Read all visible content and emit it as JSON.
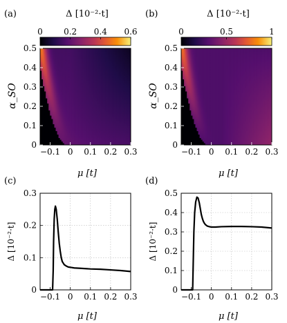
{
  "chart_data": [
    {
      "id": "a",
      "panel_label": "(a)",
      "type": "heatmap",
      "colorbar": {
        "title": "Δ [10⁻²·t]",
        "ticks": [
          "0",
          "0.2",
          "0.4",
          "0.6"
        ],
        "tick_values": [
          0,
          0.2,
          0.4,
          0.6
        ],
        "range": [
          0,
          0.6
        ],
        "colormap": "inferno-like (black-purple-red-orange-yellow)"
      },
      "xlabel": "μ [t]",
      "ylabel": "α_SO",
      "xlim": [
        -0.15,
        0.3
      ],
      "ylim": [
        0,
        0.5
      ],
      "xticks": [
        "−0.1",
        "0",
        "0.1",
        "0.2",
        "0.3"
      ],
      "xtick_values": [
        -0.1,
        0,
        0.1,
        0.2,
        0.3
      ],
      "yticks": [
        "0",
        "0.1",
        "0.2",
        "0.3",
        "0.4",
        "0.5"
      ],
      "ytick_values": [
        0,
        0.1,
        0.2,
        0.3,
        0.4,
        0.5
      ],
      "ridge_max": 0.6
    },
    {
      "id": "b",
      "panel_label": "(b)",
      "type": "heatmap",
      "colorbar": {
        "title": "Δ [10⁻²·t]",
        "ticks": [
          "0",
          "0.5",
          "1"
        ],
        "tick_values": [
          0,
          0.5,
          1
        ],
        "range": [
          0,
          1
        ],
        "colormap": "inferno-like (black-purple-red-orange-yellow)"
      },
      "xlabel": "μ [t]",
      "ylabel": "α_SO",
      "xlim": [
        -0.15,
        0.3
      ],
      "ylim": [
        0,
        0.5
      ],
      "xticks": [
        "−0.1",
        "0",
        "0.1",
        "0.2",
        "0.3"
      ],
      "xtick_values": [
        -0.1,
        0,
        0.1,
        0.2,
        0.3
      ],
      "yticks": [
        "0",
        "0.1",
        "0.2",
        "0.3",
        "0.4",
        "0.5"
      ],
      "ytick_values": [
        0,
        0.1,
        0.2,
        0.3,
        0.4,
        0.5
      ],
      "ridge_max": 0.62
    },
    {
      "id": "c",
      "panel_label": "(c)",
      "type": "line",
      "xlabel": "μ [t]",
      "ylabel": "Δ [10⁻²·t]",
      "xlim": [
        -0.15,
        0.3
      ],
      "ylim": [
        0,
        0.3
      ],
      "grid": true,
      "xticks": [
        "−0.1",
        "0",
        "0.1",
        "0.2",
        "0.3"
      ],
      "xtick_values": [
        -0.1,
        0,
        0.1,
        0.2,
        0.3
      ],
      "yticks": [
        "0",
        "0.1",
        "0.2",
        "0.3"
      ],
      "ytick_values": [
        0,
        0.1,
        0.2,
        0.3
      ],
      "series": [
        {
          "x": [
            -0.15,
            -0.12,
            -0.09,
            -0.088,
            -0.085,
            -0.083,
            -0.08,
            -0.077,
            -0.074,
            -0.07,
            -0.065,
            -0.06,
            -0.055,
            -0.05,
            -0.045,
            -0.04,
            -0.03,
            -0.02,
            -0.01,
            0.0,
            0.02,
            0.05,
            0.1,
            0.15,
            0.2,
            0.25,
            0.3
          ],
          "y": [
            0.0,
            0.0,
            0.0,
            0.0,
            0.06,
            0.15,
            0.22,
            0.25,
            0.26,
            0.25,
            0.22,
            0.18,
            0.145,
            0.12,
            0.1,
            0.088,
            0.078,
            0.074,
            0.071,
            0.07,
            0.068,
            0.067,
            0.065,
            0.064,
            0.062,
            0.06,
            0.057
          ]
        }
      ]
    },
    {
      "id": "d",
      "panel_label": "(d)",
      "type": "line",
      "xlabel": "μ [t]",
      "ylabel": "Δ [10⁻²·t]",
      "xlim": [
        -0.15,
        0.3
      ],
      "ylim": [
        0,
        0.5
      ],
      "grid": true,
      "xticks": [
        "−0.1",
        "0",
        "0.1",
        "0.2",
        "0.3"
      ],
      "xtick_values": [
        -0.1,
        0,
        0.1,
        0.2,
        0.3
      ],
      "yticks": [
        "0",
        "0.1",
        "0.2",
        "0.3",
        "0.4",
        "0.5"
      ],
      "ytick_values": [
        0,
        0.1,
        0.2,
        0.3,
        0.4,
        0.5
      ],
      "series": [
        {
          "x": [
            -0.15,
            -0.12,
            -0.095,
            -0.093,
            -0.09,
            -0.087,
            -0.083,
            -0.078,
            -0.072,
            -0.066,
            -0.06,
            -0.055,
            -0.05,
            -0.045,
            -0.04,
            -0.035,
            -0.03,
            -0.02,
            -0.01,
            0.0,
            0.02,
            0.05,
            0.1,
            0.15,
            0.2,
            0.25,
            0.3
          ],
          "y": [
            0.0,
            0.0,
            0.0,
            0.0,
            0.15,
            0.3,
            0.4,
            0.455,
            0.48,
            0.475,
            0.45,
            0.42,
            0.39,
            0.37,
            0.355,
            0.345,
            0.338,
            0.33,
            0.327,
            0.325,
            0.325,
            0.327,
            0.328,
            0.328,
            0.327,
            0.325,
            0.32
          ]
        }
      ]
    }
  ]
}
